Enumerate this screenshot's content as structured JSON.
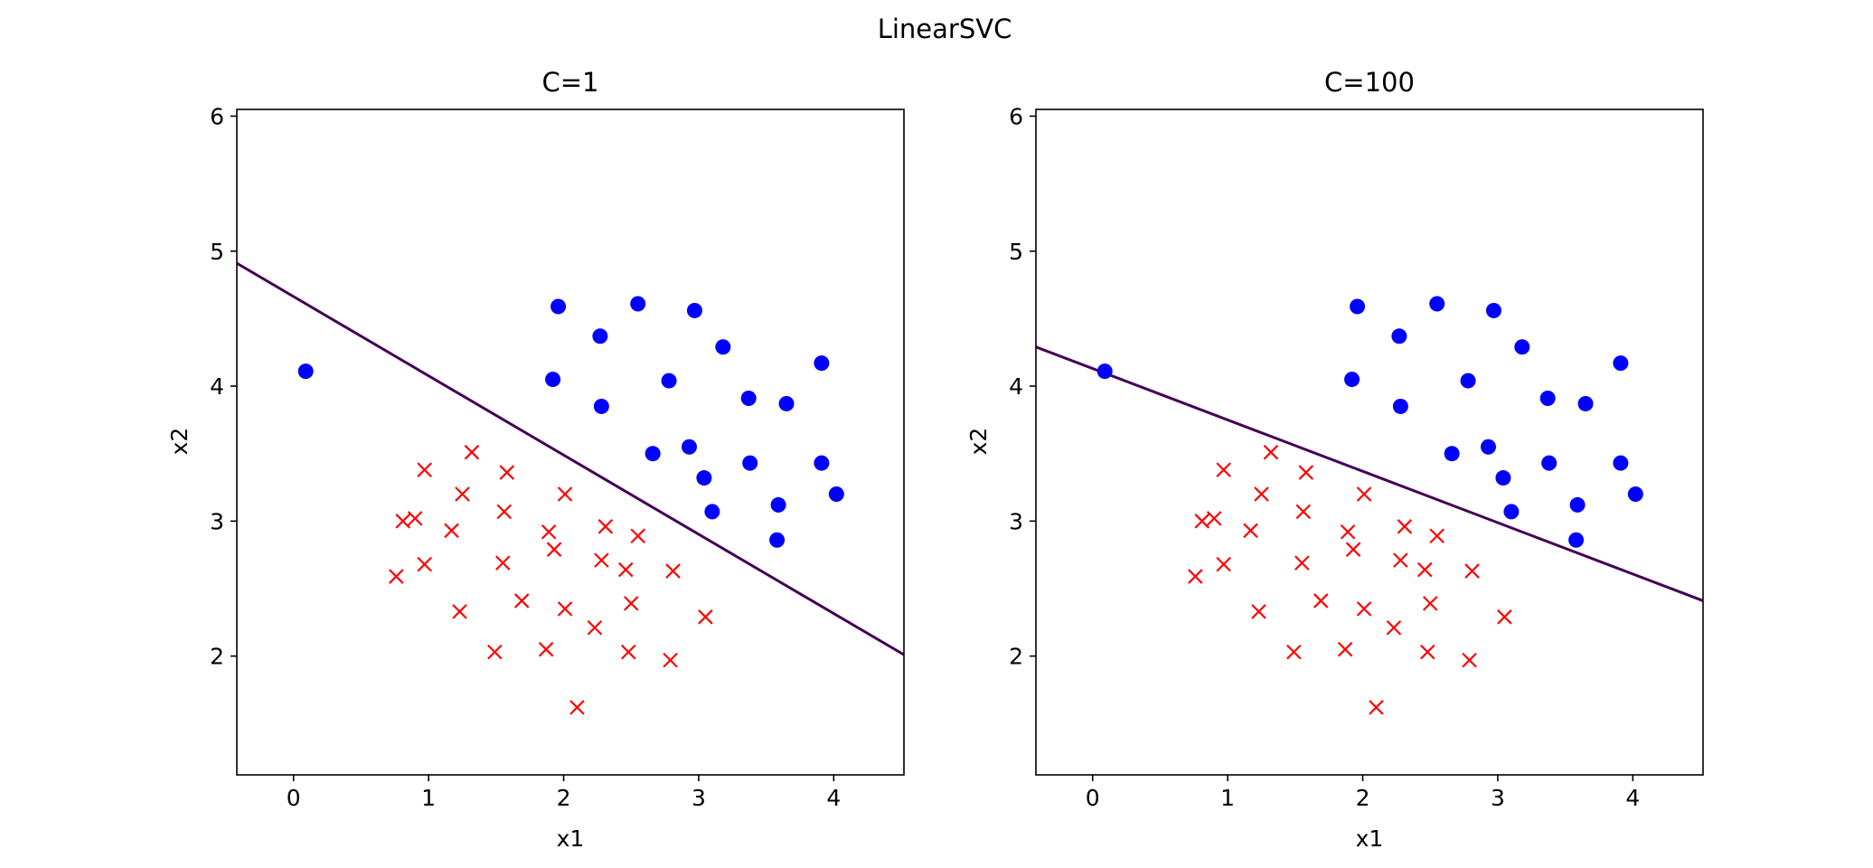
{
  "figure": {
    "suptitle": "LinearSVC"
  },
  "colors": {
    "positive": "#0000ff",
    "negative": "#ff0000",
    "boundary": "#440154",
    "axes": "#000000",
    "background": "#ffffff"
  },
  "chart_data": [
    {
      "type": "scatter",
      "title": "C=1",
      "xlabel": "x1",
      "ylabel": "x2",
      "xlim": [
        -0.42,
        4.52
      ],
      "ylim": [
        1.12,
        6.05
      ],
      "xticks": [
        0,
        1,
        2,
        3,
        4
      ],
      "yticks": [
        2,
        3,
        4,
        5,
        6
      ],
      "grid": false,
      "legend": "none",
      "series": [
        {
          "marker": "circle",
          "color": "#0000ff",
          "x": [
            0.09,
            1.96,
            2.27,
            2.55,
            2.97,
            3.18,
            1.92,
            2.28,
            2.78,
            3.37,
            3.65,
            3.91,
            2.66,
            2.93,
            3.04,
            3.38,
            3.91,
            4.02,
            3.1,
            3.59,
            3.58
          ],
          "y": [
            4.11,
            4.59,
            4.37,
            4.61,
            4.56,
            4.29,
            4.05,
            3.85,
            4.04,
            3.91,
            3.87,
            4.17,
            3.5,
            3.55,
            3.32,
            3.43,
            3.43,
            3.2,
            3.07,
            3.12,
            2.86
          ]
        },
        {
          "marker": "x",
          "color": "#ff0000",
          "x": [
            0.97,
            1.32,
            1.58,
            1.25,
            2.01,
            0.81,
            0.9,
            1.17,
            1.56,
            1.89,
            2.31,
            2.55,
            0.97,
            1.93,
            2.28,
            2.46,
            2.81,
            0.76,
            1.55,
            1.69,
            2.01,
            2.5,
            1.23,
            1.49,
            1.87,
            2.23,
            2.48,
            2.79,
            3.05,
            2.1
          ],
          "y": [
            3.38,
            3.51,
            3.36,
            3.2,
            3.2,
            3.0,
            3.02,
            2.93,
            3.07,
            2.92,
            2.96,
            2.89,
            2.68,
            2.79,
            2.71,
            2.64,
            2.63,
            2.59,
            2.69,
            2.41,
            2.35,
            2.39,
            2.33,
            2.03,
            2.05,
            2.21,
            2.03,
            1.97,
            2.29,
            1.62
          ]
        }
      ],
      "decision_boundary": {
        "x": [
          -0.42,
          4.52
        ],
        "y": [
          4.91,
          2.01
        ]
      }
    },
    {
      "type": "scatter",
      "title": "C=100",
      "xlabel": "x1",
      "ylabel": "x2",
      "xlim": [
        -0.42,
        4.52
      ],
      "ylim": [
        1.12,
        6.05
      ],
      "xticks": [
        0,
        1,
        2,
        3,
        4
      ],
      "yticks": [
        2,
        3,
        4,
        5,
        6
      ],
      "grid": false,
      "legend": "none",
      "series": [
        {
          "marker": "circle",
          "color": "#0000ff",
          "x": [
            0.09,
            1.96,
            2.27,
            2.55,
            2.97,
            3.18,
            1.92,
            2.28,
            2.78,
            3.37,
            3.65,
            3.91,
            2.66,
            2.93,
            3.04,
            3.38,
            3.91,
            4.02,
            3.1,
            3.59,
            3.58
          ],
          "y": [
            4.11,
            4.59,
            4.37,
            4.61,
            4.56,
            4.29,
            4.05,
            3.85,
            4.04,
            3.91,
            3.87,
            4.17,
            3.5,
            3.55,
            3.32,
            3.43,
            3.43,
            3.2,
            3.07,
            3.12,
            2.86
          ]
        },
        {
          "marker": "x",
          "color": "#ff0000",
          "x": [
            0.97,
            1.32,
            1.58,
            1.25,
            2.01,
            0.81,
            0.9,
            1.17,
            1.56,
            1.89,
            2.31,
            2.55,
            0.97,
            1.93,
            2.28,
            2.46,
            2.81,
            0.76,
            1.55,
            1.69,
            2.01,
            2.5,
            1.23,
            1.49,
            1.87,
            2.23,
            2.48,
            2.79,
            3.05,
            2.1
          ],
          "y": [
            3.38,
            3.51,
            3.36,
            3.2,
            3.2,
            3.0,
            3.02,
            2.93,
            3.07,
            2.92,
            2.96,
            2.89,
            2.68,
            2.79,
            2.71,
            2.64,
            2.63,
            2.59,
            2.69,
            2.41,
            2.35,
            2.39,
            2.33,
            2.03,
            2.05,
            2.21,
            2.03,
            1.97,
            2.29,
            1.62
          ]
        }
      ],
      "decision_boundary": {
        "x": [
          -0.42,
          4.52
        ],
        "y": [
          4.29,
          2.41
        ]
      }
    }
  ]
}
